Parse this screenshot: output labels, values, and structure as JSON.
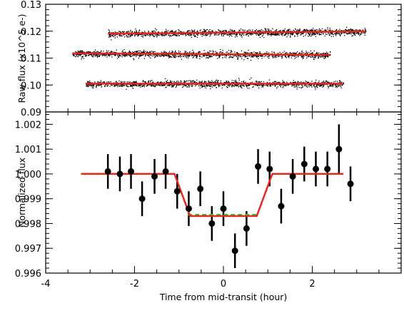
{
  "chart_data": [
    {
      "type": "scatter",
      "panel": "top",
      "title": "",
      "xlabel": "",
      "ylabel": "Raw flux (x10^5 e-)",
      "xlim": [
        -4,
        4
      ],
      "ylim": [
        0.09,
        0.13
      ],
      "yticks": [
        0.09,
        0.1,
        0.11,
        0.12,
        0.13
      ],
      "ytick_labels": [
        "0.09",
        "0.10",
        "0.11",
        "0.12",
        "0.13"
      ],
      "colors": {
        "points": "#000000",
        "model": "#e8241e"
      },
      "series": [
        {
          "x_range": [
            -2.6,
            3.2
          ],
          "level": 0.1195,
          "slope": 0.00015,
          "scatter": 0.0011
        },
        {
          "x_range": [
            -3.4,
            2.4
          ],
          "level": 0.1115,
          "slope": -0.0001,
          "scatter": 0.0011
        },
        {
          "x_range": [
            -3.1,
            2.7
          ],
          "level": 0.1005,
          "slope": 0.0,
          "scatter": 0.0011
        }
      ]
    },
    {
      "type": "scatter",
      "panel": "bottom",
      "title": "",
      "xlabel": "Time from mid-transit (hour)",
      "ylabel": "Normalized flux",
      "xlim": [
        -4,
        4
      ],
      "ylim": [
        0.996,
        1.0025
      ],
      "xticks": [
        -4,
        -2,
        0,
        2
      ],
      "xtick_labels": [
        "-4",
        "-2",
        "0",
        "2"
      ],
      "yticks": [
        0.996,
        0.997,
        0.998,
        0.999,
        1.0,
        1.001,
        1.002
      ],
      "ytick_labels": [
        "0.996",
        "0.997",
        "0.998",
        "0.999",
        "1.000",
        "1.001",
        "1.002"
      ],
      "colors": {
        "points": "#000000",
        "model": "#e8241e",
        "box_model": "#22cc22"
      },
      "points": [
        {
          "x": -2.6,
          "y": 1.0001,
          "err": 0.0007
        },
        {
          "x": -2.33,
          "y": 1.0,
          "err": 0.0007
        },
        {
          "x": -2.08,
          "y": 1.0001,
          "err": 0.0007
        },
        {
          "x": -1.83,
          "y": 0.999,
          "err": 0.0007
        },
        {
          "x": -1.55,
          "y": 0.9999,
          "err": 0.0007
        },
        {
          "x": -1.3,
          "y": 1.0001,
          "err": 0.0007
        },
        {
          "x": -1.04,
          "y": 0.9993,
          "err": 0.0007
        },
        {
          "x": -0.78,
          "y": 0.9986,
          "err": 0.0007
        },
        {
          "x": -0.52,
          "y": 0.9994,
          "err": 0.0007
        },
        {
          "x": -0.26,
          "y": 0.998,
          "err": 0.0007
        },
        {
          "x": 0.0,
          "y": 0.9986,
          "err": 0.0007
        },
        {
          "x": 0.26,
          "y": 0.9969,
          "err": 0.0007
        },
        {
          "x": 0.52,
          "y": 0.9978,
          "err": 0.0007
        },
        {
          "x": 0.78,
          "y": 1.0003,
          "err": 0.0007
        },
        {
          "x": 1.04,
          "y": 1.0002,
          "err": 0.0007
        },
        {
          "x": 1.3,
          "y": 0.9987,
          "err": 0.0007
        },
        {
          "x": 1.56,
          "y": 0.9999,
          "err": 0.0007
        },
        {
          "x": 1.82,
          "y": 1.0004,
          "err": 0.0007
        },
        {
          "x": 2.08,
          "y": 1.0002,
          "err": 0.0007
        },
        {
          "x": 2.34,
          "y": 1.0002,
          "err": 0.0007
        },
        {
          "x": 2.6,
          "y": 1.001,
          "err": 0.001
        },
        {
          "x": 2.86,
          "y": 0.9996,
          "err": 0.0007
        }
      ],
      "transit_model": {
        "x": [
          -3.2,
          -1.1,
          -0.75,
          0.75,
          1.1,
          2.7
        ],
        "y": [
          1.0,
          1.0,
          0.9983,
          0.9983,
          1.0,
          1.0
        ]
      },
      "box_model": {
        "segments": [
          {
            "x": [
              -3.2,
              -2.75
            ],
            "y": 1.0
          },
          {
            "x": [
              -0.8,
              0.8
            ],
            "y": 0.99835
          }
        ]
      }
    }
  ]
}
